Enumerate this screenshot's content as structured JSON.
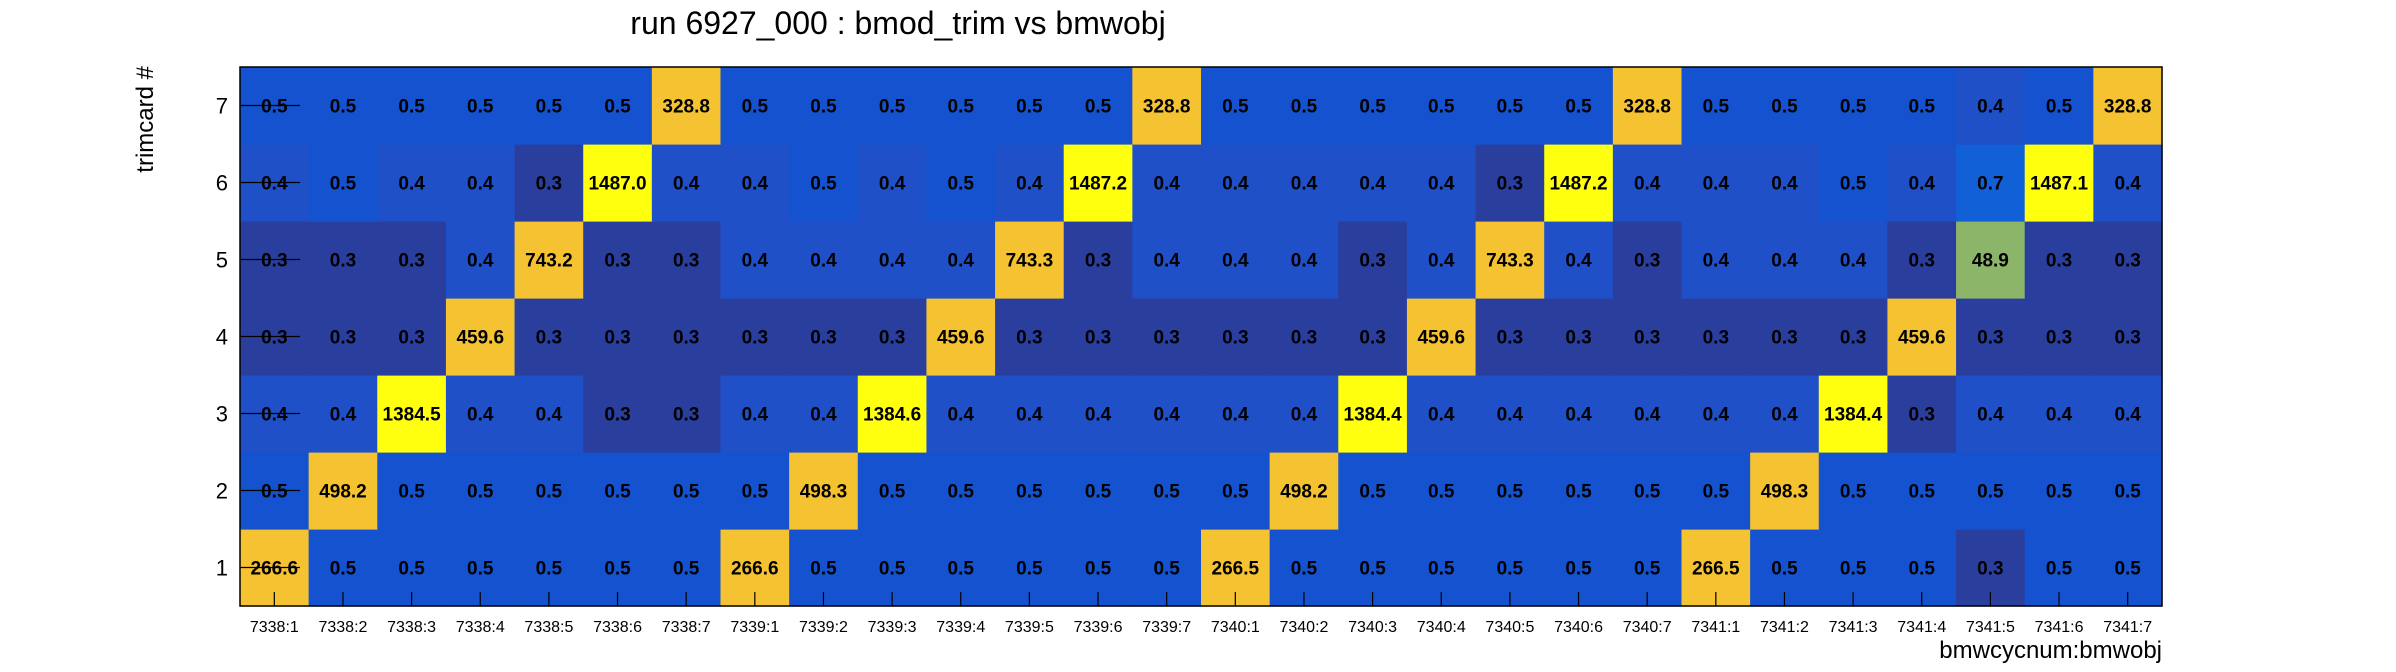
{
  "chart_data": {
    "type": "heatmap",
    "title": "run 6927_000 : bmod_trim vs bmwobj",
    "xlabel": "bmwcycnum:bmwobj",
    "ylabel": "trimcard #",
    "categories": [
      "7338:1",
      "7338:2",
      "7338:3",
      "7338:4",
      "7338:5",
      "7338:6",
      "7338:7",
      "7339:1",
      "7339:2",
      "7339:3",
      "7339:4",
      "7339:5",
      "7339:6",
      "7339:7",
      "7340:1",
      "7340:2",
      "7340:3",
      "7340:4",
      "7340:5",
      "7340:6",
      "7340:7",
      "7341:1",
      "7341:2",
      "7341:3",
      "7341:4",
      "7341:5",
      "7341:6",
      "7341:7"
    ],
    "y_categories": [
      "1",
      "2",
      "3",
      "4",
      "5",
      "6",
      "7"
    ],
    "values": [
      [
        "266.6",
        "0.5",
        "0.5",
        "0.5",
        "0.5",
        "0.5",
        "0.5",
        "266.6",
        "0.5",
        "0.5",
        "0.5",
        "0.5",
        "0.5",
        "0.5",
        "266.5",
        "0.5",
        "0.5",
        "0.5",
        "0.5",
        "0.5",
        "0.5",
        "266.5",
        "0.5",
        "0.5",
        "0.5",
        "0.3",
        "0.5",
        "0.5"
      ],
      [
        "0.5",
        "498.2",
        "0.5",
        "0.5",
        "0.5",
        "0.5",
        "0.5",
        "0.5",
        "498.3",
        "0.5",
        "0.5",
        "0.5",
        "0.5",
        "0.5",
        "0.5",
        "498.2",
        "0.5",
        "0.5",
        "0.5",
        "0.5",
        "0.5",
        "0.5",
        "498.3",
        "0.5",
        "0.5",
        "0.5",
        "0.5",
        "0.5"
      ],
      [
        "0.4",
        "0.4",
        "1384.5",
        "0.4",
        "0.4",
        "0.3",
        "0.3",
        "0.4",
        "0.4",
        "1384.6",
        "0.4",
        "0.4",
        "0.4",
        "0.4",
        "0.4",
        "0.4",
        "1384.4",
        "0.4",
        "0.4",
        "0.4",
        "0.4",
        "0.4",
        "0.4",
        "1384.4",
        "0.3",
        "0.4",
        "0.4",
        "0.4"
      ],
      [
        "0.3",
        "0.3",
        "0.3",
        "459.6",
        "0.3",
        "0.3",
        "0.3",
        "0.3",
        "0.3",
        "0.3",
        "459.6",
        "0.3",
        "0.3",
        "0.3",
        "0.3",
        "0.3",
        "0.3",
        "459.6",
        "0.3",
        "0.3",
        "0.3",
        "0.3",
        "0.3",
        "0.3",
        "459.6",
        "0.3",
        "0.3",
        "0.3"
      ],
      [
        "0.3",
        "0.3",
        "0.3",
        "0.4",
        "743.2",
        "0.3",
        "0.3",
        "0.4",
        "0.4",
        "0.4",
        "0.4",
        "743.3",
        "0.3",
        "0.4",
        "0.4",
        "0.4",
        "0.3",
        "0.4",
        "743.3",
        "0.4",
        "0.3",
        "0.4",
        "0.4",
        "0.4",
        "0.3",
        "48.9",
        "0.3",
        "0.3"
      ],
      [
        "0.4",
        "0.5",
        "0.4",
        "0.4",
        "0.3",
        "1487.0",
        "0.4",
        "0.4",
        "0.5",
        "0.4",
        "0.5",
        "0.4",
        "1487.2",
        "0.4",
        "0.4",
        "0.4",
        "0.4",
        "0.4",
        "0.3",
        "1487.2",
        "0.4",
        "0.4",
        "0.4",
        "0.5",
        "0.4",
        "0.7",
        "1487.1",
        "0.4"
      ],
      [
        "0.5",
        "0.5",
        "0.5",
        "0.5",
        "0.5",
        "0.5",
        "328.8",
        "0.5",
        "0.5",
        "0.5",
        "0.5",
        "0.5",
        "0.5",
        "328.8",
        "0.5",
        "0.5",
        "0.5",
        "0.5",
        "0.5",
        "0.5",
        "328.8",
        "0.5",
        "0.5",
        "0.5",
        "0.5",
        "0.4",
        "0.5",
        "328.8"
      ]
    ],
    "colors": {
      "0.3": "#2a3e9e",
      "0.4": "#1f50c8",
      "0.5": "#1552cf",
      "0.7": "#1160d8",
      "48.9": "#8db56a",
      "266": "#f5c231",
      "328": "#f5c231",
      "459": "#f5c231",
      "498": "#f5c231",
      "743": "#f5c231",
      "1384": "#ffff0e",
      "1487": "#ffff0e"
    },
    "grid": false,
    "legend": "none"
  }
}
